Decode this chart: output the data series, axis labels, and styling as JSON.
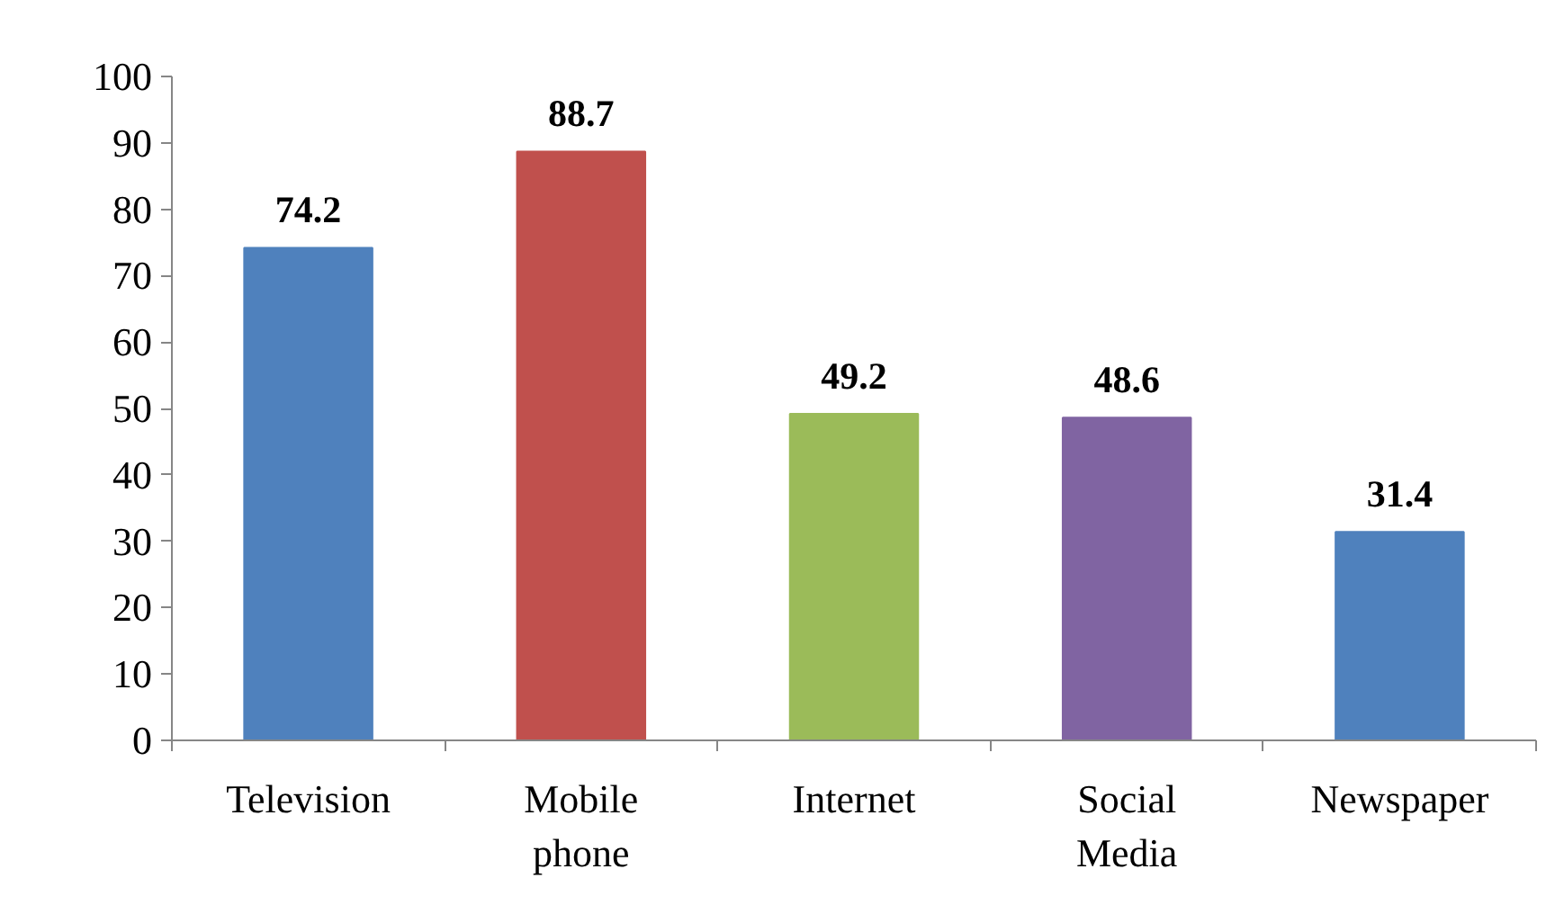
{
  "chart_data": {
    "type": "bar",
    "categories": [
      "Television",
      "Mobile phone",
      "Internet",
      "Social Media",
      "Newspaper"
    ],
    "values": [
      74.2,
      88.7,
      49.2,
      48.6,
      31.4
    ],
    "colors": [
      "#4f81bd",
      "#c0504d",
      "#9bbb59",
      "#8064a2",
      "#4f81bd"
    ],
    "ylim": [
      0,
      100
    ],
    "yticks": [
      0,
      10,
      20,
      30,
      40,
      50,
      60,
      70,
      80,
      90,
      100
    ],
    "data_labels": true,
    "grid": false
  }
}
